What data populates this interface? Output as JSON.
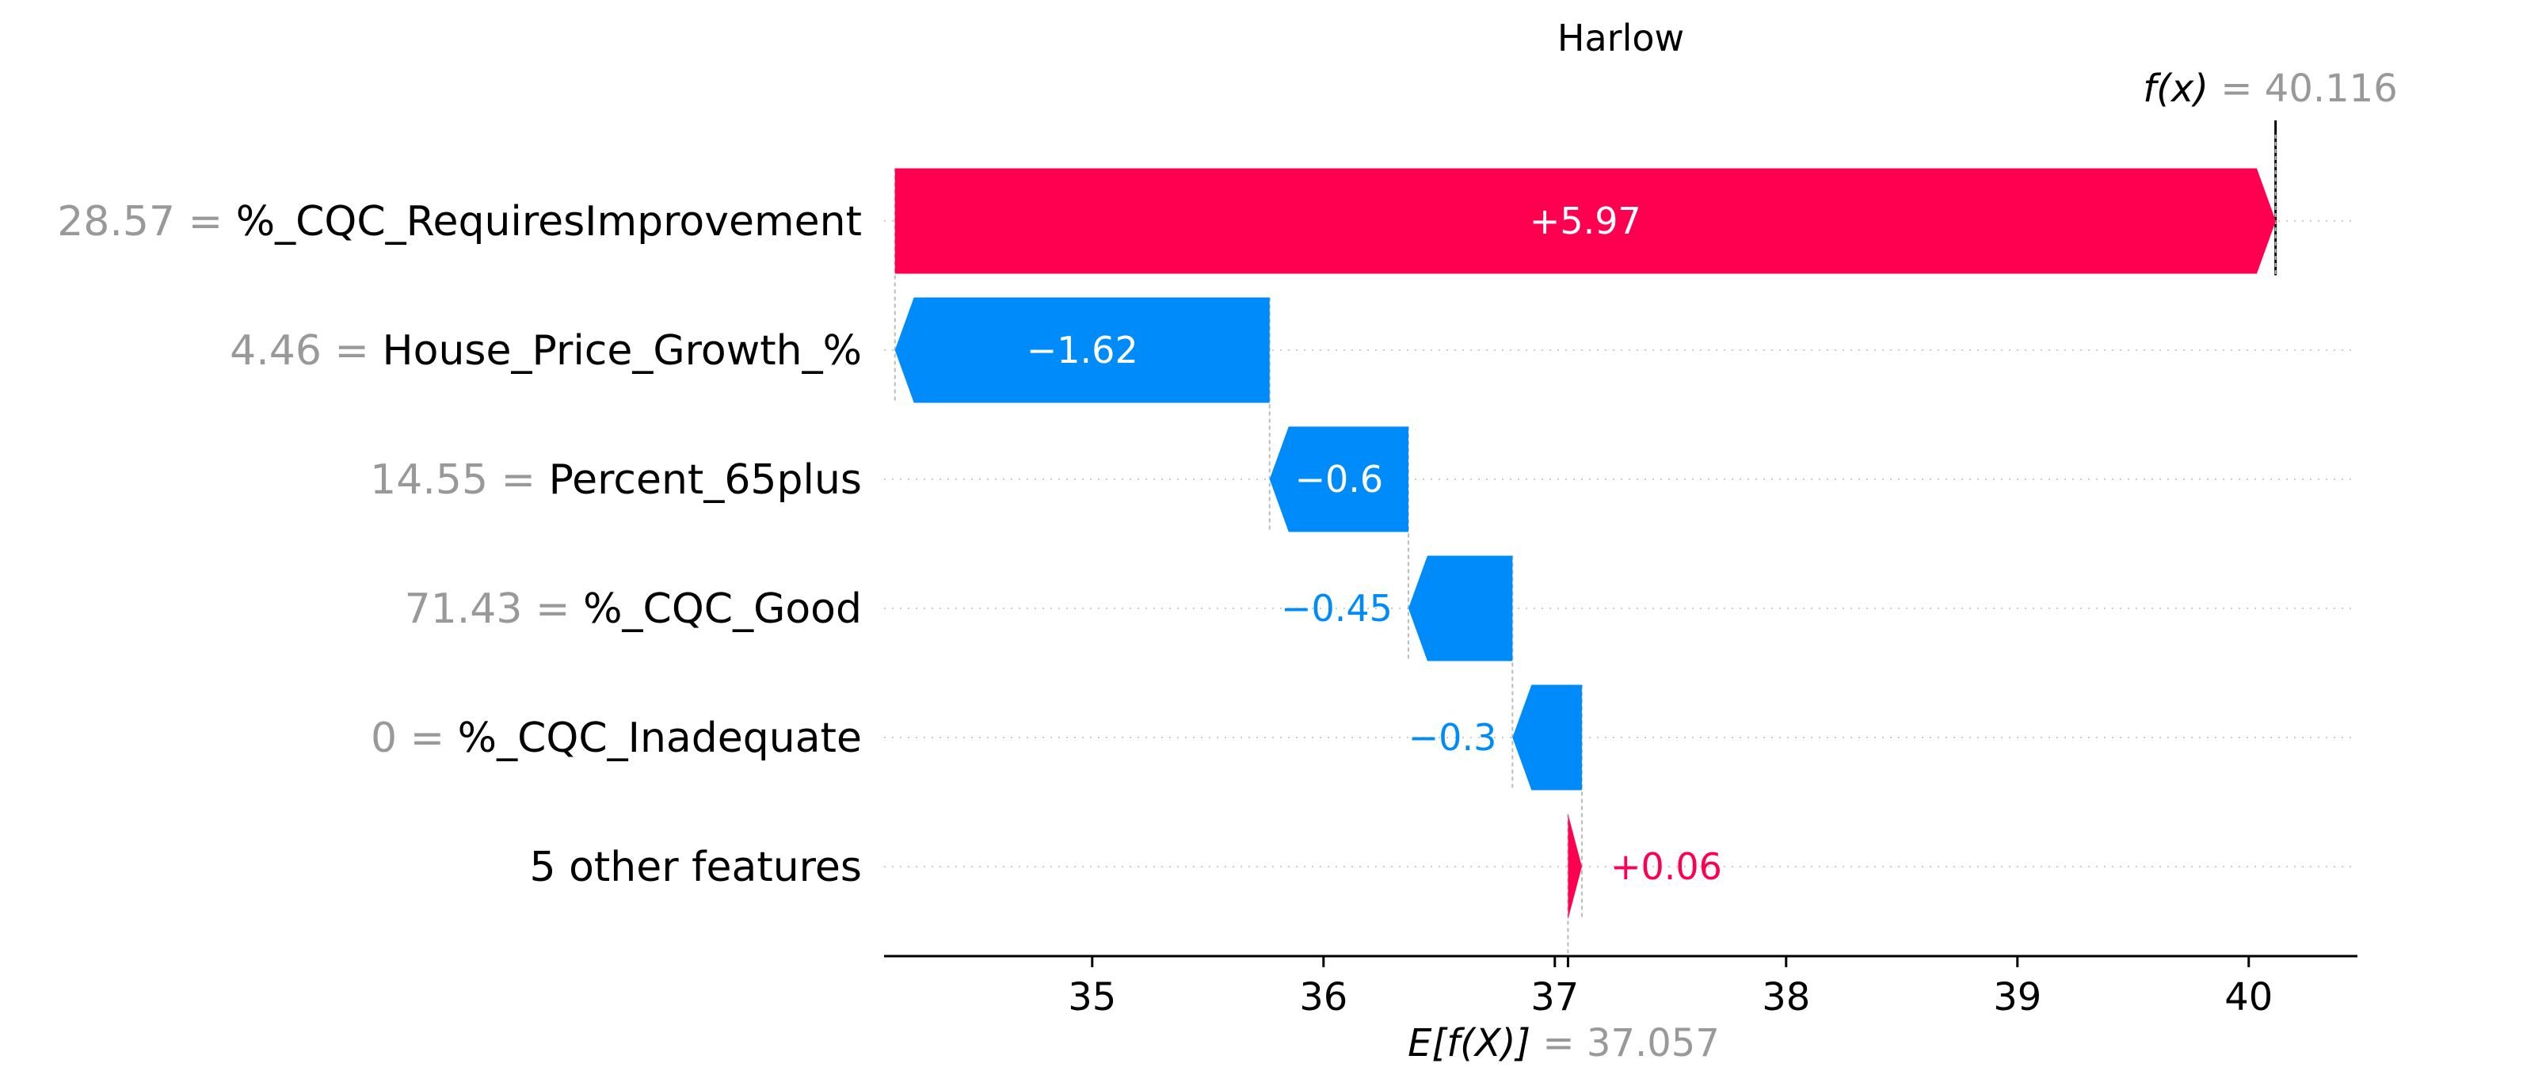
{
  "chart_data": {
    "type": "waterfall",
    "title": "Harlow",
    "fx_label": "f(x)",
    "fx_value": "40.116",
    "base_label": "E[f(X)]",
    "base_value": "37.057",
    "fx": 40.116,
    "base": 37.057,
    "xlim": [
      34.1,
      40.47
    ],
    "xticks": [
      35,
      36,
      37,
      38,
      39,
      40
    ],
    "features": [
      {
        "value": "28.57",
        "name": "%_CQC_RequiresImprovement",
        "contribution": 5.97,
        "label": "+5.97"
      },
      {
        "value": "4.46",
        "name": "House_Price_Growth_%",
        "contribution": -1.62,
        "label": "−1.62"
      },
      {
        "value": "14.55",
        "name": "Percent_65plus",
        "contribution": -0.6,
        "label": "−0.6"
      },
      {
        "value": "71.43",
        "name": "%_CQC_Good",
        "contribution": -0.45,
        "label": "−0.45"
      },
      {
        "value": "0",
        "name": "%_CQC_Inadequate",
        "contribution": -0.3,
        "label": "−0.3"
      },
      {
        "value": "",
        "name": "5 other features",
        "contribution": 0.06,
        "label": "+0.06"
      }
    ],
    "colors": {
      "positive": "#ff0051",
      "negative": "#008bfb",
      "value_gray": "#999999"
    }
  }
}
